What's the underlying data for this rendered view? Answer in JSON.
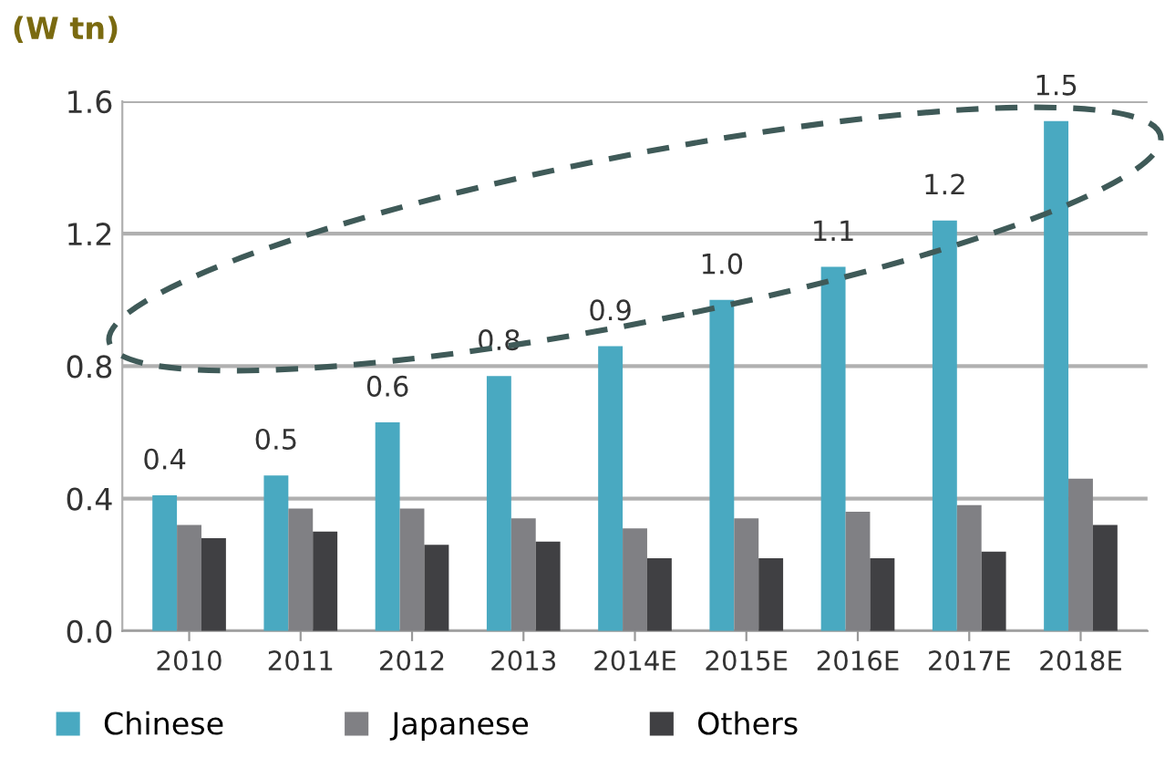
{
  "chart_data": {
    "type": "bar",
    "ylabel": "(W tn)",
    "categories": [
      "2010",
      "2011",
      "2012",
      "2013",
      "2014E",
      "2015E",
      "2016E",
      "2017E",
      "2018E"
    ],
    "series": [
      {
        "name": "Chinese",
        "color": "#49a9c1",
        "values": [
          0.41,
          0.47,
          0.63,
          0.77,
          0.86,
          1.0,
          1.1,
          1.24,
          1.54
        ],
        "value_labels": [
          "0.4",
          "0.5",
          "0.6",
          "0.8",
          "0.9",
          "1.0",
          "1.1",
          "1.2",
          "1.5"
        ]
      },
      {
        "name": "Japanese",
        "color": "#808084",
        "values": [
          0.32,
          0.37,
          0.37,
          0.34,
          0.31,
          0.34,
          0.36,
          0.38,
          0.46
        ]
      },
      {
        "name": "Others",
        "color": "#404043",
        "values": [
          0.28,
          0.3,
          0.26,
          0.27,
          0.22,
          0.22,
          0.22,
          0.24,
          0.32
        ]
      }
    ],
    "ylim": [
      0,
      1.6
    ],
    "yticks": [
      "0.0",
      "0.4",
      "0.8",
      "1.2",
      "1.6"
    ],
    "grid": "y",
    "legend": "bottom"
  }
}
